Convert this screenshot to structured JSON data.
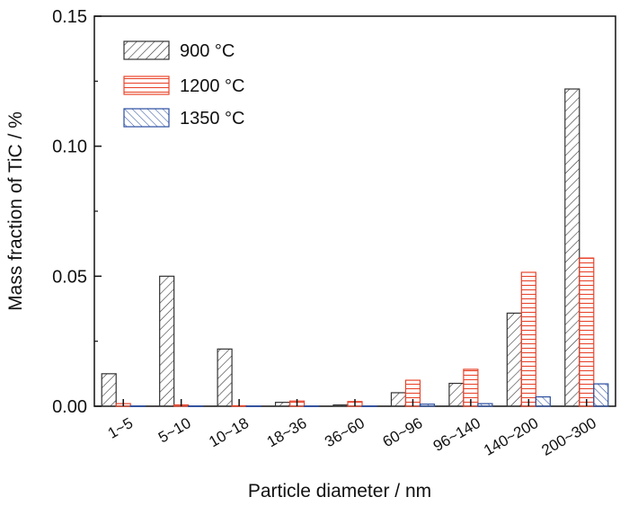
{
  "chart_data": {
    "type": "bar",
    "xlabel": "Particle diameter / nm",
    "ylabel": "Mass fraction of TiC / %",
    "ylim": [
      0,
      0.15
    ],
    "yticks": [
      "0.00",
      "0.05",
      "0.10",
      "0.15"
    ],
    "ytick_values": [
      0,
      0.05,
      0.1,
      0.15
    ],
    "categories": [
      "1~5",
      "5~10",
      "10~18",
      "18~36",
      "36~60",
      "60~96",
      "96~140",
      "140~200",
      "200~300"
    ],
    "series": [
      {
        "name": "900 °C",
        "color": "#333333",
        "pattern": "diagonal-forward",
        "values": [
          0.0125,
          0.05,
          0.022,
          0.0015,
          0.0005,
          0.0052,
          0.0088,
          0.0358,
          0.122
        ]
      },
      {
        "name": "1200 °C",
        "color": "#e8452c",
        "pattern": "horizontal",
        "values": [
          0.001,
          0.0005,
          0.0002,
          0.002,
          0.0018,
          0.01,
          0.0142,
          0.0515,
          0.057
        ]
      },
      {
        "name": "1350 °C",
        "color": "#2a4ea0",
        "pattern": "diagonal-back",
        "values": [
          0.0001,
          0.0001,
          0.0001,
          0.0001,
          0.0001,
          0.0008,
          0.001,
          0.0036,
          0.0086
        ]
      }
    ],
    "legend_position": "top-left",
    "grid": false
  }
}
